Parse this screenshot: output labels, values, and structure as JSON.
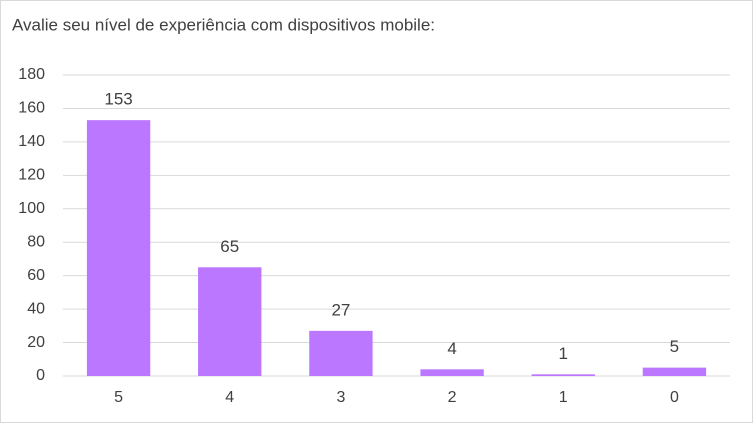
{
  "chart_data": {
    "type": "bar",
    "title": "Avalie seu nível de experiência com dispositivos mobile:",
    "categories": [
      "5",
      "4",
      "3",
      "2",
      "1",
      "0"
    ],
    "values": [
      153,
      65,
      27,
      4,
      1,
      5
    ],
    "color": "#bb77ff",
    "ylim": [
      0,
      180
    ],
    "yticks": [
      0,
      20,
      40,
      60,
      80,
      100,
      120,
      140,
      160,
      180
    ],
    "grid": true
  }
}
